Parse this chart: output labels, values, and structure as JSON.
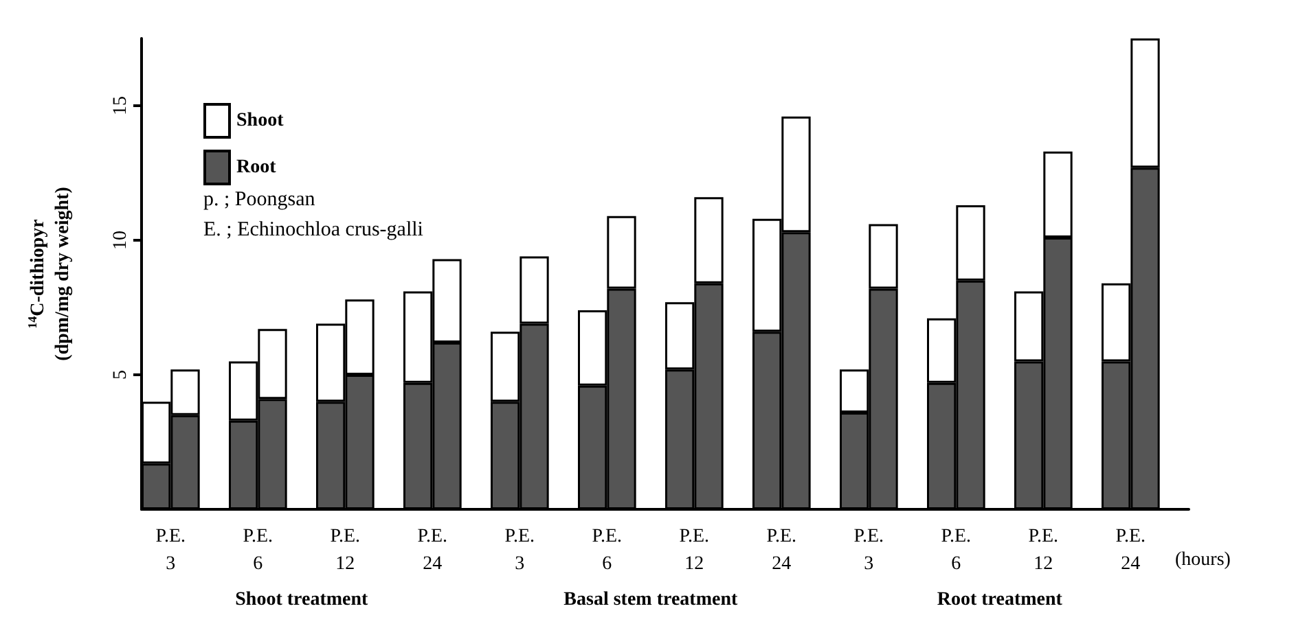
{
  "chart_data": {
    "type": "bar",
    "stacked": true,
    "ylabel": "$^{14}$C-dithiopyr\n(dpm/mg dry weight)",
    "xlabel": "(hours)",
    "categories": [
      "P.E.\n3",
      null,
      null,
      "P.E.\n6",
      null,
      null,
      "P.E.\n12",
      null,
      null,
      "P.E.\n24",
      null,
      null,
      "P.E.\n3",
      null,
      null,
      "P.E.\n6",
      null,
      null,
      "P.E.\n12",
      null,
      null,
      "P.E.\n24",
      null,
      null,
      "P.E.\n3",
      null,
      null,
      "P.E.\n6",
      null,
      null,
      "P.E.\n12",
      null,
      null,
      "P.E.\n24",
      null,
      null
    ],
    "series": [
      {
        "name": "Root",
        "color": "#555555",
        "values": [
          1.7,
          3.5,
          null,
          3.3,
          4.1,
          null,
          4.0,
          5.0,
          null,
          4.7,
          6.2,
          null,
          4.0,
          6.9,
          null,
          4.6,
          8.2,
          null,
          5.2,
          8.4,
          null,
          6.6,
          10.3,
          null,
          3.6,
          8.2,
          null,
          4.7,
          8.5,
          null,
          5.5,
          10.1,
          null,
          5.5,
          12.7,
          null
        ]
      },
      {
        "name": "Shoot",
        "color": "#ffffff",
        "values": [
          2.3,
          1.7,
          null,
          2.2,
          2.6,
          null,
          2.9,
          2.8,
          null,
          3.4,
          3.1,
          null,
          2.6,
          2.5,
          null,
          2.8,
          2.7,
          null,
          2.5,
          3.2,
          null,
          4.2,
          4.3,
          null,
          1.6,
          2.4,
          null,
          2.4,
          2.8,
          null,
          2.6,
          3.2,
          null,
          2.9,
          4.8,
          null
        ]
      }
    ],
    "ylim": [
      0,
      17.5
    ],
    "yticks": [
      5,
      10,
      15
    ],
    "grid": false,
    "legend": "top left",
    "annotations": [
      "p. ; Poongsan",
      "E. ; Echinochloa crus-galli",
      "Shoot treatment",
      "Basal stem treatment",
      "Root treatment"
    ]
  }
}
